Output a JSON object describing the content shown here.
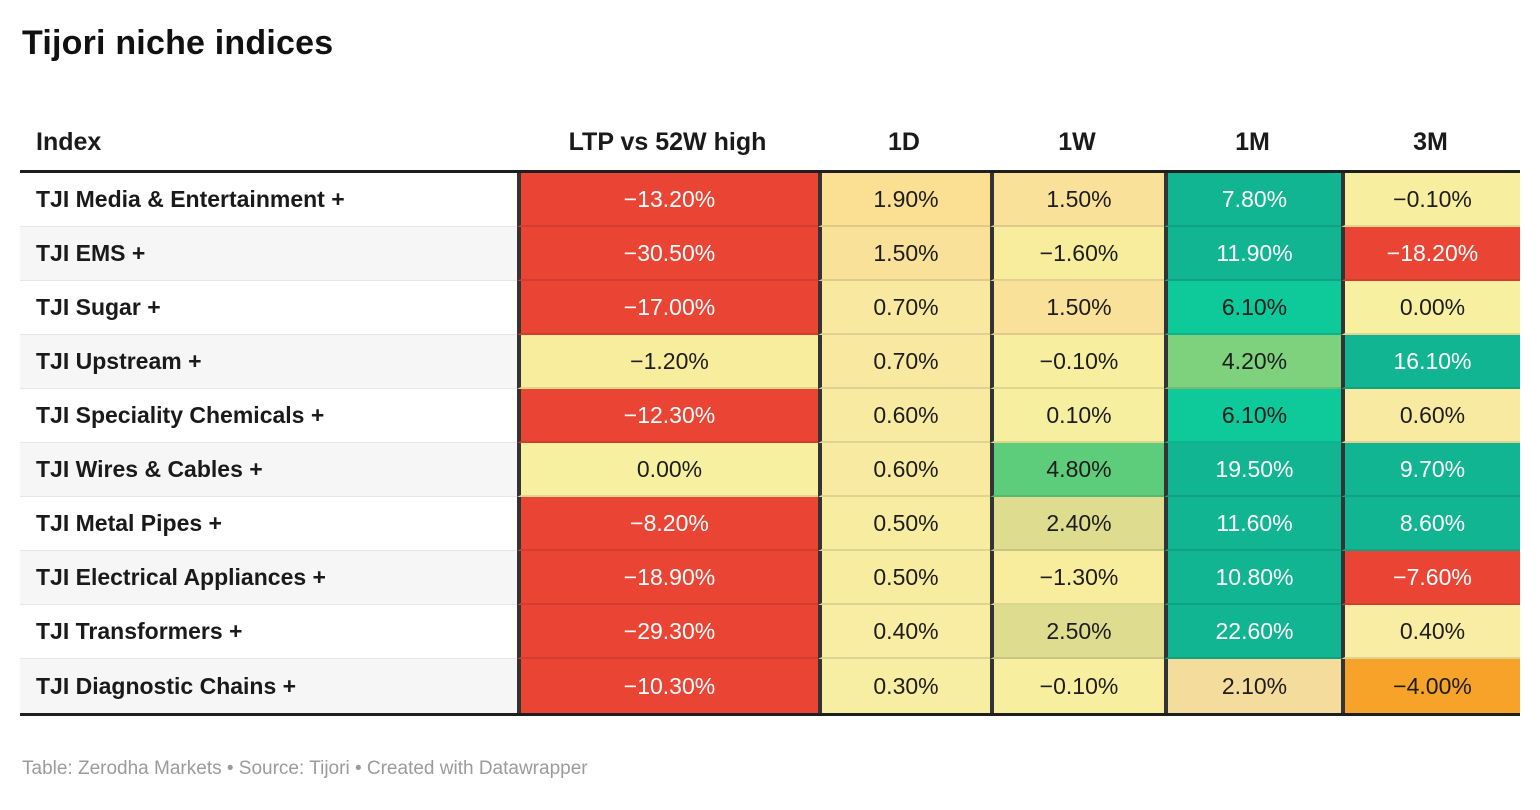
{
  "page": {
    "title": "Tijori niche indices",
    "footer": "Table: Zerodha Markets • Source: Tijori • Created with Datawrapper"
  },
  "table": {
    "columns": [
      "Index",
      "LTP vs 52W high",
      "1D",
      "1W",
      "1M",
      "3M"
    ],
    "rows": [
      {
        "name": "TJI Media & Entertainment +",
        "cells": [
          {
            "text": "−13.20%",
            "bg": "#ea4435",
            "fg": "#ffffff"
          },
          {
            "text": "1.90%",
            "bg": "#fbdf93",
            "fg": "#1d1d1d"
          },
          {
            "text": "1.50%",
            "bg": "#fae19a",
            "fg": "#1d1d1d"
          },
          {
            "text": "7.80%",
            "bg": "#12b591",
            "fg": "#ffffff"
          },
          {
            "text": "−0.10%",
            "bg": "#f7ef9f",
            "fg": "#1d1d1d"
          }
        ]
      },
      {
        "name": "TJI EMS +",
        "cells": [
          {
            "text": "−30.50%",
            "bg": "#ea4435",
            "fg": "#ffffff"
          },
          {
            "text": "1.50%",
            "bg": "#fae19a",
            "fg": "#1d1d1d"
          },
          {
            "text": "−1.60%",
            "bg": "#f8ec9d",
            "fg": "#1d1d1d"
          },
          {
            "text": "11.90%",
            "bg": "#12b591",
            "fg": "#ffffff"
          },
          {
            "text": "−18.20%",
            "bg": "#ea4435",
            "fg": "#ffffff"
          }
        ]
      },
      {
        "name": "TJI Sugar +",
        "cells": [
          {
            "text": "−17.00%",
            "bg": "#ea4435",
            "fg": "#ffffff"
          },
          {
            "text": "0.70%",
            "bg": "#f9e9a0",
            "fg": "#1d1d1d"
          },
          {
            "text": "1.50%",
            "bg": "#fae19a",
            "fg": "#1d1d1d"
          },
          {
            "text": "6.10%",
            "bg": "#0ec999",
            "fg": "#1d1d1d"
          },
          {
            "text": "0.00%",
            "bg": "#f7f0a1",
            "fg": "#1d1d1d"
          }
        ]
      },
      {
        "name": "TJI Upstream +",
        "cells": [
          {
            "text": "−1.20%",
            "bg": "#f8ec9d",
            "fg": "#1d1d1d"
          },
          {
            "text": "0.70%",
            "bg": "#f9e9a0",
            "fg": "#1d1d1d"
          },
          {
            "text": "−0.10%",
            "bg": "#f7ef9f",
            "fg": "#1d1d1d"
          },
          {
            "text": "4.20%",
            "bg": "#7ed27e",
            "fg": "#1d1d1d"
          },
          {
            "text": "16.10%",
            "bg": "#12b591",
            "fg": "#ffffff"
          }
        ]
      },
      {
        "name": "TJI Speciality Chemicals +",
        "cells": [
          {
            "text": "−12.30%",
            "bg": "#ea4435",
            "fg": "#ffffff"
          },
          {
            "text": "0.60%",
            "bg": "#f8eba1",
            "fg": "#1d1d1d"
          },
          {
            "text": "0.10%",
            "bg": "#f7efa0",
            "fg": "#1d1d1d"
          },
          {
            "text": "6.10%",
            "bg": "#0ec999",
            "fg": "#1d1d1d"
          },
          {
            "text": "0.60%",
            "bg": "#f8eba1",
            "fg": "#1d1d1d"
          }
        ]
      },
      {
        "name": "TJI Wires & Cables +",
        "cells": [
          {
            "text": "0.00%",
            "bg": "#f7f0a1",
            "fg": "#1d1d1d"
          },
          {
            "text": "0.60%",
            "bg": "#f8eba1",
            "fg": "#1d1d1d"
          },
          {
            "text": "4.80%",
            "bg": "#5ecd7b",
            "fg": "#1d1d1d"
          },
          {
            "text": "19.50%",
            "bg": "#12b591",
            "fg": "#ffffff"
          },
          {
            "text": "9.70%",
            "bg": "#12b591",
            "fg": "#ffffff"
          }
        ]
      },
      {
        "name": "TJI Metal Pipes +",
        "cells": [
          {
            "text": "−8.20%",
            "bg": "#ea4435",
            "fg": "#ffffff"
          },
          {
            "text": "0.50%",
            "bg": "#f8eca1",
            "fg": "#1d1d1d"
          },
          {
            "text": "2.40%",
            "bg": "#dedc8e",
            "fg": "#1d1d1d"
          },
          {
            "text": "11.60%",
            "bg": "#12b591",
            "fg": "#ffffff"
          },
          {
            "text": "8.60%",
            "bg": "#12b591",
            "fg": "#ffffff"
          }
        ]
      },
      {
        "name": "TJI Electrical Appliances +",
        "cells": [
          {
            "text": "−18.90%",
            "bg": "#ea4435",
            "fg": "#ffffff"
          },
          {
            "text": "0.50%",
            "bg": "#f8eca1",
            "fg": "#1d1d1d"
          },
          {
            "text": "−1.30%",
            "bg": "#f8ec9d",
            "fg": "#1d1d1d"
          },
          {
            "text": "10.80%",
            "bg": "#12b591",
            "fg": "#ffffff"
          },
          {
            "text": "−7.60%",
            "bg": "#ea4435",
            "fg": "#ffffff"
          }
        ]
      },
      {
        "name": "TJI Transformers +",
        "cells": [
          {
            "text": "−29.30%",
            "bg": "#ea4435",
            "fg": "#ffffff"
          },
          {
            "text": "0.40%",
            "bg": "#f8eda2",
            "fg": "#1d1d1d"
          },
          {
            "text": "2.50%",
            "bg": "#dedc8e",
            "fg": "#1d1d1d"
          },
          {
            "text": "22.60%",
            "bg": "#12b591",
            "fg": "#ffffff"
          },
          {
            "text": "0.40%",
            "bg": "#f8eda2",
            "fg": "#1d1d1d"
          }
        ]
      },
      {
        "name": "TJI Diagnostic Chains +",
        "cells": [
          {
            "text": "−10.30%",
            "bg": "#ea4435",
            "fg": "#ffffff"
          },
          {
            "text": "0.30%",
            "bg": "#f8eea3",
            "fg": "#1d1d1d"
          },
          {
            "text": "−0.10%",
            "bg": "#f7ef9f",
            "fg": "#1d1d1d"
          },
          {
            "text": "2.10%",
            "bg": "#f3dc9c",
            "fg": "#1d1d1d"
          },
          {
            "text": "−4.00%",
            "bg": "#f7a229",
            "fg": "#1d1d1d"
          }
        ]
      }
    ]
  },
  "chart_data": {
    "type": "table",
    "title": "Tijori niche indices",
    "columns": [
      "Index",
      "LTP vs 52W high",
      "1D",
      "1W",
      "1M",
      "3M"
    ],
    "units": "%",
    "rows": [
      {
        "index": "TJI Media & Entertainment +",
        "ltp_vs_52w_high": -13.2,
        "d1": 1.9,
        "w1": 1.5,
        "m1": 7.8,
        "m3": -0.1
      },
      {
        "index": "TJI EMS +",
        "ltp_vs_52w_high": -30.5,
        "d1": 1.5,
        "w1": -1.6,
        "m1": 11.9,
        "m3": -18.2
      },
      {
        "index": "TJI Sugar +",
        "ltp_vs_52w_high": -17.0,
        "d1": 0.7,
        "w1": 1.5,
        "m1": 6.1,
        "m3": 0.0
      },
      {
        "index": "TJI Upstream +",
        "ltp_vs_52w_high": -1.2,
        "d1": 0.7,
        "w1": -0.1,
        "m1": 4.2,
        "m3": 16.1
      },
      {
        "index": "TJI Speciality Chemicals +",
        "ltp_vs_52w_high": -12.3,
        "d1": 0.6,
        "w1": 0.1,
        "m1": 6.1,
        "m3": 0.6
      },
      {
        "index": "TJI Wires & Cables +",
        "ltp_vs_52w_high": 0.0,
        "d1": 0.6,
        "w1": 4.8,
        "m1": 19.5,
        "m3": 9.7
      },
      {
        "index": "TJI Metal Pipes +",
        "ltp_vs_52w_high": -8.2,
        "d1": 0.5,
        "w1": 2.4,
        "m1": 11.6,
        "m3": 8.6
      },
      {
        "index": "TJI Electrical Appliances +",
        "ltp_vs_52w_high": -18.9,
        "d1": 0.5,
        "w1": -1.3,
        "m1": 10.8,
        "m3": -7.6
      },
      {
        "index": "TJI Transformers +",
        "ltp_vs_52w_high": -29.3,
        "d1": 0.4,
        "w1": 2.5,
        "m1": 22.6,
        "m3": 0.4
      },
      {
        "index": "TJI Diagnostic Chains +",
        "ltp_vs_52w_high": -10.3,
        "d1": 0.3,
        "w1": -0.1,
        "m1": 2.1,
        "m3": -4.0
      }
    ],
    "layout": {
      "heatmap": true,
      "negative_color": "#ea4435",
      "neutral_color": "#f7ef9f",
      "positive_color": "#12b591",
      "warning_color": "#f7a229"
    }
  }
}
